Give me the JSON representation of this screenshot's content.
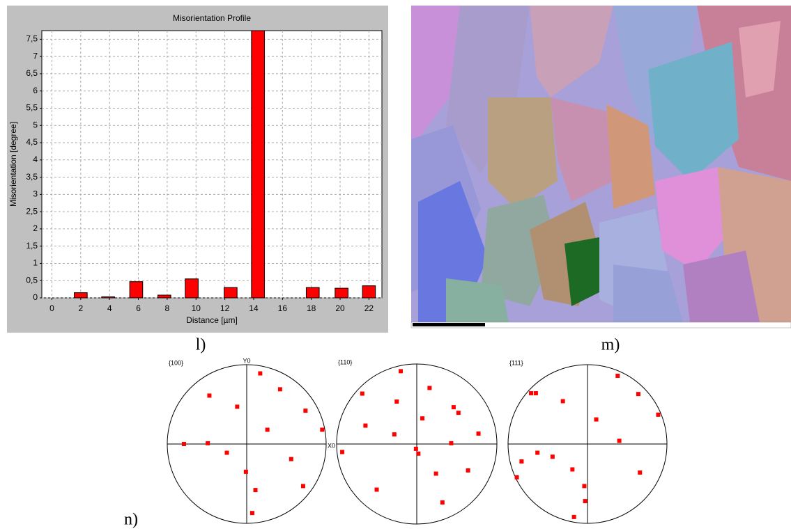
{
  "chart_data": [
    {
      "type": "bar",
      "title": "Misorientation Profile",
      "x_label": "Distance [µm]",
      "y_label": "Misorientation [degree]",
      "x": [
        2,
        3.9,
        5.85,
        7.8,
        9.7,
        12.4,
        14.3,
        18.1,
        20.1,
        22.0
      ],
      "values": [
        0.15,
        0.03,
        0.47,
        0.08,
        0.55,
        0.3,
        7.75,
        0.3,
        0.28,
        0.35
      ],
      "color": "#ff0000",
      "xlim": [
        -0.7,
        22.9
      ],
      "xticks": [
        0,
        2,
        4,
        6,
        8,
        10,
        12,
        14,
        16,
        18,
        20,
        22
      ],
      "ylim": [
        0,
        7.75
      ],
      "yticks": [
        0,
        {
          "value": 0.5,
          "label": "0,5"
        },
        1,
        {
          "value": 1.5,
          "label": "1,5"
        },
        2,
        {
          "value": 2.5,
          "label": "2,5"
        },
        3,
        {
          "value": 3.5,
          "label": "3,5"
        },
        4,
        {
          "value": 4.5,
          "label": "4,5"
        },
        5,
        {
          "value": 5.5,
          "label": "5,5"
        },
        6,
        {
          "value": 6.5,
          "label": "6,5"
        },
        7,
        {
          "value": 7.5,
          "label": "7,5"
        }
      ],
      "grid": true
    },
    {
      "type": "scatter",
      "title": "{100}",
      "x_label": "X0",
      "y_label": "Y0",
      "color": "#ff0000",
      "xlim": [
        -1,
        1
      ],
      "ylim": [
        -1,
        1
      ],
      "x": [
        0.17,
        0.42,
        -0.47,
        -0.12,
        0.74,
        0.95,
        0.26,
        -0.79,
        -0.49,
        -0.25,
        0.56,
        -0.01,
        0.11,
        0.71,
        0.07
      ],
      "values": [
        0.89,
        0.69,
        0.61,
        0.47,
        0.42,
        0.18,
        0.18,
        0,
        0.01,
        -0.11,
        -0.19,
        -0.35,
        -0.58,
        -0.53,
        -0.87
      ]
    },
    {
      "type": "scatter",
      "title": "{110}",
      "color": "#ff0000",
      "xlim": [
        -1,
        1
      ],
      "ylim": [
        -1,
        1
      ],
      "x": [
        -0.2,
        -0.68,
        -0.25,
        0.16,
        0.46,
        0.52,
        -0.64,
        0.07,
        -0.28,
        0.77,
        0.43,
        -0.01,
        0.02,
        -0.93,
        0.24,
        0.64,
        -0.5,
        0.32
      ],
      "values": [
        0.91,
        0.63,
        0.53,
        0.7,
        0.46,
        0.39,
        0.23,
        0.32,
        0.12,
        0.13,
        0.01,
        -0.06,
        -0.12,
        -0.1,
        -0.37,
        -0.33,
        -0.57,
        -0.73
      ]
    },
    {
      "type": "scatter",
      "title": "{111}",
      "color": "#ff0000",
      "xlim": [
        -1,
        1
      ],
      "ylim": [
        -1,
        1
      ],
      "x": [
        0.38,
        0.64,
        -0.71,
        -0.65,
        -0.31,
        0.11,
        0.4,
        0.89,
        -0.83,
        -0.63,
        -0.44,
        -0.19,
        -0.04,
        -0.03,
        0.66,
        -0.89,
        -0.17
      ],
      "values": [
        0.86,
        0.63,
        0.64,
        0.64,
        0.54,
        0.31,
        0.04,
        0.37,
        -0.22,
        -0.11,
        -0.16,
        -0.32,
        -0.53,
        -0.72,
        -0.36,
        -0.42,
        -0.92
      ]
    }
  ],
  "panel_labels": [
    "l)",
    "m)",
    "n)"
  ]
}
